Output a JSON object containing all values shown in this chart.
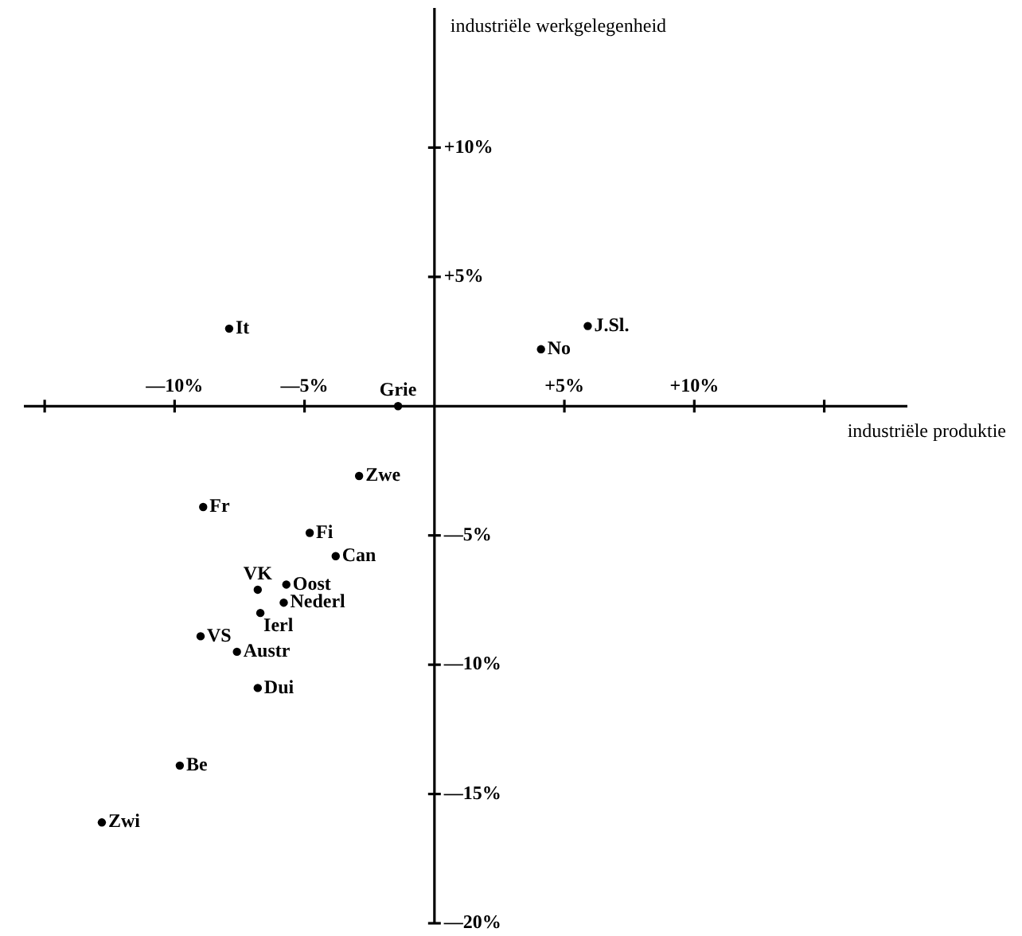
{
  "chart_data": {
    "type": "scatter",
    "xlabel": "industriële produktie",
    "ylabel": "industriële werkgelegenheid",
    "xlim": [
      -15.8,
      18.2
    ],
    "ylim": [
      -20,
      15.4
    ],
    "xticks": [
      {
        "value": -15,
        "label": null
      },
      {
        "value": -10,
        "label": "—10%"
      },
      {
        "value": -5,
        "label": "—5%"
      },
      {
        "value": 5,
        "label": "+5%"
      },
      {
        "value": 10,
        "label": "+10%"
      },
      {
        "value": 15,
        "label": null
      }
    ],
    "yticks": [
      {
        "value": 10,
        "label": "+10%"
      },
      {
        "value": 5,
        "label": "+5%"
      },
      {
        "value": -5,
        "label": "—5%"
      },
      {
        "value": -10,
        "label": "—10%"
      },
      {
        "value": -15,
        "label": "—15%"
      },
      {
        "value": -20,
        "label": "—20%"
      }
    ],
    "grid": false,
    "legend": false,
    "marker": "circle",
    "series": [
      {
        "name": "It",
        "color": "#000000",
        "x": [
          -7.9
        ],
        "values": [
          3.0
        ]
      },
      {
        "name": "Grie",
        "color": "#000000",
        "x": [
          -1.4
        ],
        "values": [
          0.0
        ]
      },
      {
        "name": "J.Sl.",
        "color": "#000000",
        "x": [
          5.9
        ],
        "values": [
          3.1
        ]
      },
      {
        "name": "No",
        "color": "#000000",
        "x": [
          4.1
        ],
        "values": [
          2.2
        ]
      },
      {
        "name": "Zwe",
        "color": "#000000",
        "x": [
          -2.9
        ],
        "values": [
          -2.7
        ]
      },
      {
        "name": "Fr",
        "color": "#000000",
        "x": [
          -8.9
        ],
        "values": [
          -3.9
        ]
      },
      {
        "name": "Fi",
        "color": "#000000",
        "x": [
          -4.8
        ],
        "values": [
          -4.9
        ]
      },
      {
        "name": "Can",
        "color": "#000000",
        "x": [
          -3.8
        ],
        "values": [
          -5.8
        ]
      },
      {
        "name": "Oost",
        "color": "#000000",
        "x": [
          -5.7
        ],
        "values": [
          -6.9
        ]
      },
      {
        "name": "VK",
        "color": "#000000",
        "x": [
          -6.8
        ],
        "values": [
          -7.1
        ]
      },
      {
        "name": "Nederl",
        "color": "#000000",
        "x": [
          -5.8
        ],
        "values": [
          -7.6
        ]
      },
      {
        "name": "Ierl",
        "color": "#000000",
        "x": [
          -6.7
        ],
        "values": [
          -8.0
        ]
      },
      {
        "name": "VS",
        "color": "#000000",
        "x": [
          -9.0
        ],
        "values": [
          -8.9
        ]
      },
      {
        "name": "Austr",
        "color": "#000000",
        "x": [
          -7.6
        ],
        "values": [
          -9.5
        ]
      },
      {
        "name": "Dui",
        "color": "#000000",
        "x": [
          -6.8
        ],
        "values": [
          -10.9
        ]
      },
      {
        "name": "Be",
        "color": "#000000",
        "x": [
          -9.8
        ],
        "values": [
          -13.9
        ]
      },
      {
        "name": "Zwi",
        "color": "#000000",
        "x": [
          -12.8
        ],
        "values": [
          -16.1
        ]
      }
    ]
  }
}
